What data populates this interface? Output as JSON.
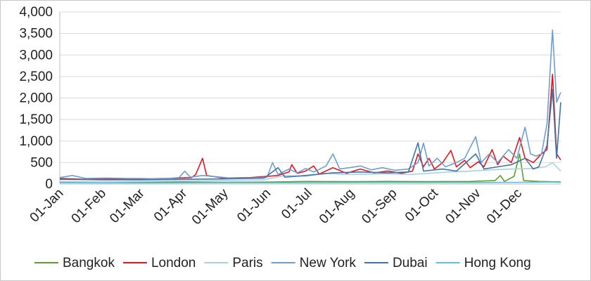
{
  "chart_data": {
    "type": "line",
    "title": "",
    "xlabel": "",
    "ylabel": "",
    "ylim": [
      0,
      4000
    ],
    "y_ticks": [
      "0",
      "500",
      "1,000",
      "1,500",
      "2,000",
      "2,500",
      "3,000",
      "3,500",
      "4,000"
    ],
    "x_tick_labels": [
      "01-Jan",
      "01-Feb",
      "01-Mar",
      "01-Apr",
      "01-May",
      "01-Jun",
      "01-Jul",
      "01-Aug",
      "01-Sep",
      "01-Oct",
      "01-Nov",
      "01-Dec"
    ],
    "x_tick_days": [
      1,
      32,
      60,
      91,
      121,
      152,
      182,
      213,
      244,
      274,
      305,
      335
    ],
    "x_range_days": [
      1,
      366
    ],
    "grid": "horizontal",
    "legend_position": "bottom",
    "series": [
      {
        "name": "Bangkok",
        "color": "#5aa02c",
        "points": [
          [
            1,
            40
          ],
          [
            30,
            35
          ],
          [
            60,
            40
          ],
          [
            90,
            45
          ],
          [
            120,
            40
          ],
          [
            150,
            45
          ],
          [
            180,
            60
          ],
          [
            210,
            55
          ],
          [
            240,
            60
          ],
          [
            270,
            55
          ],
          [
            300,
            60
          ],
          [
            318,
            80
          ],
          [
            322,
            200
          ],
          [
            325,
            60
          ],
          [
            332,
            180
          ],
          [
            336,
            700
          ],
          [
            339,
            80
          ],
          [
            350,
            60
          ],
          [
            366,
            50
          ]
        ]
      },
      {
        "name": "London",
        "color": "#e8141b",
        "points": [
          [
            1,
            130
          ],
          [
            20,
            110
          ],
          [
            40,
            120
          ],
          [
            60,
            120
          ],
          [
            80,
            130
          ],
          [
            97,
            150
          ],
          [
            100,
            220
          ],
          [
            105,
            600
          ],
          [
            108,
            200
          ],
          [
            120,
            140
          ],
          [
            140,
            150
          ],
          [
            160,
            200
          ],
          [
            168,
            280
          ],
          [
            170,
            450
          ],
          [
            174,
            250
          ],
          [
            180,
            300
          ],
          [
            186,
            420
          ],
          [
            190,
            230
          ],
          [
            200,
            380
          ],
          [
            210,
            250
          ],
          [
            220,
            350
          ],
          [
            230,
            260
          ],
          [
            240,
            300
          ],
          [
            250,
            250
          ],
          [
            258,
            300
          ],
          [
            262,
            700
          ],
          [
            266,
            400
          ],
          [
            270,
            600
          ],
          [
            274,
            350
          ],
          [
            280,
            500
          ],
          [
            286,
            780
          ],
          [
            290,
            400
          ],
          [
            296,
            550
          ],
          [
            300,
            380
          ],
          [
            306,
            520
          ],
          [
            310,
            400
          ],
          [
            316,
            800
          ],
          [
            320,
            450
          ],
          [
            324,
            650
          ],
          [
            330,
            500
          ],
          [
            336,
            1080
          ],
          [
            340,
            600
          ],
          [
            346,
            500
          ],
          [
            352,
            700
          ],
          [
            356,
            800
          ],
          [
            360,
            2550
          ],
          [
            363,
            700
          ],
          [
            366,
            560
          ]
        ]
      },
      {
        "name": "Paris",
        "color": "#a6d2e0",
        "points": [
          [
            1,
            60
          ],
          [
            30,
            50
          ],
          [
            60,
            60
          ],
          [
            90,
            70
          ],
          [
            120,
            80
          ],
          [
            150,
            100
          ],
          [
            165,
            200
          ],
          [
            180,
            180
          ],
          [
            195,
            250
          ],
          [
            210,
            220
          ],
          [
            225,
            230
          ],
          [
            240,
            240
          ],
          [
            255,
            220
          ],
          [
            270,
            250
          ],
          [
            285,
            280
          ],
          [
            300,
            300
          ],
          [
            315,
            330
          ],
          [
            330,
            350
          ],
          [
            345,
            360
          ],
          [
            355,
            400
          ],
          [
            360,
            500
          ],
          [
            366,
            300
          ]
        ]
      },
      {
        "name": "New York",
        "color": "#6b9fd1",
        "points": [
          [
            1,
            150
          ],
          [
            10,
            200
          ],
          [
            20,
            130
          ],
          [
            35,
            140
          ],
          [
            50,
            130
          ],
          [
            60,
            130
          ],
          [
            75,
            120
          ],
          [
            88,
            150
          ],
          [
            92,
            300
          ],
          [
            96,
            160
          ],
          [
            105,
            200
          ],
          [
            115,
            170
          ],
          [
            125,
            140
          ],
          [
            140,
            140
          ],
          [
            152,
            160
          ],
          [
            156,
            500
          ],
          [
            160,
            220
          ],
          [
            168,
            350
          ],
          [
            174,
            260
          ],
          [
            180,
            360
          ],
          [
            186,
            280
          ],
          [
            195,
            420
          ],
          [
            200,
            700
          ],
          [
            205,
            350
          ],
          [
            212,
            380
          ],
          [
            220,
            420
          ],
          [
            228,
            330
          ],
          [
            236,
            380
          ],
          [
            245,
            320
          ],
          [
            255,
            350
          ],
          [
            262,
            500
          ],
          [
            266,
            950
          ],
          [
            270,
            420
          ],
          [
            276,
            600
          ],
          [
            282,
            400
          ],
          [
            290,
            500
          ],
          [
            296,
            600
          ],
          [
            304,
            1100
          ],
          [
            308,
            500
          ],
          [
            314,
            700
          ],
          [
            320,
            500
          ],
          [
            328,
            800
          ],
          [
            334,
            600
          ],
          [
            340,
            1320
          ],
          [
            344,
            700
          ],
          [
            348,
            650
          ],
          [
            352,
            700
          ],
          [
            356,
            1400
          ],
          [
            360,
            3580
          ],
          [
            363,
            1900
          ],
          [
            366,
            2130
          ]
        ]
      },
      {
        "name": "Dubai",
        "color": "#3f74a8",
        "points": [
          [
            1,
            110
          ],
          [
            30,
            100
          ],
          [
            60,
            100
          ],
          [
            90,
            110
          ],
          [
            120,
            120
          ],
          [
            150,
            140
          ],
          [
            160,
            380
          ],
          [
            165,
            160
          ],
          [
            180,
            200
          ],
          [
            200,
            260
          ],
          [
            220,
            280
          ],
          [
            240,
            260
          ],
          [
            255,
            280
          ],
          [
            262,
            960
          ],
          [
            266,
            300
          ],
          [
            280,
            350
          ],
          [
            290,
            300
          ],
          [
            304,
            700
          ],
          [
            310,
            350
          ],
          [
            320,
            400
          ],
          [
            330,
            450
          ],
          [
            340,
            600
          ],
          [
            346,
            350
          ],
          [
            350,
            400
          ],
          [
            356,
            900
          ],
          [
            360,
            2200
          ],
          [
            363,
            600
          ],
          [
            366,
            1900
          ]
        ]
      },
      {
        "name": "Hong Kong",
        "color": "#5bc0ea",
        "points": [
          [
            1,
            30
          ],
          [
            60,
            25
          ],
          [
            120,
            30
          ],
          [
            180,
            30
          ],
          [
            240,
            35
          ],
          [
            300,
            35
          ],
          [
            340,
            40
          ],
          [
            360,
            45
          ],
          [
            366,
            40
          ]
        ]
      }
    ]
  }
}
